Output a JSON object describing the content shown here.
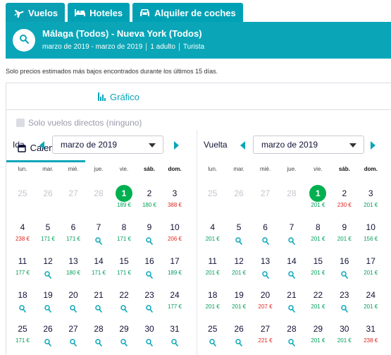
{
  "tabs": [
    {
      "label": "Vuelos",
      "icon": "plane-icon",
      "active": true
    },
    {
      "label": "Hoteles",
      "icon": "bed-icon",
      "active": false
    },
    {
      "label": "Alquiler de coches",
      "icon": "car-icon",
      "active": false
    }
  ],
  "search": {
    "route": "Málaga (Todos) - Nueva York (Todos)",
    "dates": "marzo de 2019 - marzo de 2019",
    "passengers": "1 adulto",
    "cabin": "Turista"
  },
  "note": "Solo precios estimados más bajos encontrados durante los últimos 15 días.",
  "view_tabs": {
    "calendar": "Calendario",
    "chart": "Gráfico"
  },
  "direct_only": "Solo vuelos directos (ninguno)",
  "weekdays": [
    "lun.",
    "mar.",
    "mié.",
    "jue.",
    "vie.",
    "sáb.",
    "dom."
  ],
  "outbound": {
    "label": "Ida",
    "month": "marzo de 2019",
    "weeks": [
      [
        {
          "d": "25",
          "off": true
        },
        {
          "d": "26",
          "off": true
        },
        {
          "d": "27",
          "off": true
        },
        {
          "d": "28",
          "off": true
        },
        {
          "d": "1",
          "p": "189 €",
          "c": "g",
          "sel": true
        },
        {
          "d": "2",
          "p": "180 €",
          "c": "g"
        },
        {
          "d": "3",
          "p": "388 €",
          "c": "r"
        }
      ],
      [
        {
          "d": "4",
          "p": "238 €",
          "c": "r"
        },
        {
          "d": "5",
          "p": "171 €",
          "c": "g"
        },
        {
          "d": "6",
          "p": "171 €",
          "c": "g"
        },
        {
          "d": "7",
          "s": true
        },
        {
          "d": "8",
          "p": "171 €",
          "c": "g"
        },
        {
          "d": "9",
          "s": true
        },
        {
          "d": "10",
          "p": "206 €",
          "c": "r"
        }
      ],
      [
        {
          "d": "11",
          "p": "177 €",
          "c": "g"
        },
        {
          "d": "12",
          "s": true
        },
        {
          "d": "13",
          "p": "180 €",
          "c": "g"
        },
        {
          "d": "14",
          "p": "171 €",
          "c": "g"
        },
        {
          "d": "15",
          "p": "171 €",
          "c": "g"
        },
        {
          "d": "16",
          "s": true
        },
        {
          "d": "17",
          "p": "189 €",
          "c": "g"
        }
      ],
      [
        {
          "d": "18",
          "s": true
        },
        {
          "d": "19",
          "s": true
        },
        {
          "d": "20",
          "s": true
        },
        {
          "d": "21",
          "s": true
        },
        {
          "d": "22",
          "s": true
        },
        {
          "d": "23",
          "s": true
        },
        {
          "d": "24",
          "p": "177 €",
          "c": "g"
        }
      ],
      [
        {
          "d": "25",
          "p": "171 €",
          "c": "g"
        },
        {
          "d": "26",
          "s": true
        },
        {
          "d": "27",
          "s": true
        },
        {
          "d": "28",
          "s": true
        },
        {
          "d": "29",
          "s": true
        },
        {
          "d": "30",
          "s": true
        },
        {
          "d": "31",
          "s": true
        }
      ]
    ]
  },
  "return": {
    "label": "Vuelta",
    "month": "marzo de 2019",
    "weeks": [
      [
        {
          "d": "25",
          "off": true
        },
        {
          "d": "26",
          "off": true
        },
        {
          "d": "27",
          "off": true
        },
        {
          "d": "28",
          "off": true
        },
        {
          "d": "1",
          "p": "201 €",
          "c": "g",
          "sel": true
        },
        {
          "d": "2",
          "p": "230 €",
          "c": "r"
        },
        {
          "d": "3",
          "p": "201 €",
          "c": "g"
        }
      ],
      [
        {
          "d": "4",
          "p": "201 €",
          "c": "g"
        },
        {
          "d": "5",
          "s": true
        },
        {
          "d": "6",
          "s": true
        },
        {
          "d": "7",
          "s": true
        },
        {
          "d": "8",
          "p": "201 €",
          "c": "g"
        },
        {
          "d": "9",
          "p": "201 €",
          "c": "g"
        },
        {
          "d": "10",
          "p": "156 €",
          "c": "g"
        }
      ],
      [
        {
          "d": "11",
          "p": "201 €",
          "c": "g"
        },
        {
          "d": "12",
          "p": "201 €",
          "c": "g"
        },
        {
          "d": "13",
          "s": true
        },
        {
          "d": "14",
          "s": true
        },
        {
          "d": "15",
          "p": "201 €",
          "c": "g"
        },
        {
          "d": "16",
          "s": true
        },
        {
          "d": "17",
          "p": "201 €",
          "c": "g"
        }
      ],
      [
        {
          "d": "18",
          "p": "201 €",
          "c": "g"
        },
        {
          "d": "19",
          "p": "201 €",
          "c": "g"
        },
        {
          "d": "20",
          "p": "207 €",
          "c": "r"
        },
        {
          "d": "21",
          "s": true
        },
        {
          "d": "22",
          "p": "201 €",
          "c": "g"
        },
        {
          "d": "23",
          "s": true
        },
        {
          "d": "24",
          "p": "201 €",
          "c": "g"
        }
      ],
      [
        {
          "d": "25",
          "s": true
        },
        {
          "d": "26",
          "s": true
        },
        {
          "d": "27",
          "p": "221 €",
          "c": "r"
        },
        {
          "d": "28",
          "s": true
        },
        {
          "d": "29",
          "p": "201 €",
          "c": "g"
        },
        {
          "d": "30",
          "p": "201 €",
          "c": "g"
        },
        {
          "d": "31",
          "p": "238 €",
          "c": "r"
        }
      ]
    ]
  }
}
